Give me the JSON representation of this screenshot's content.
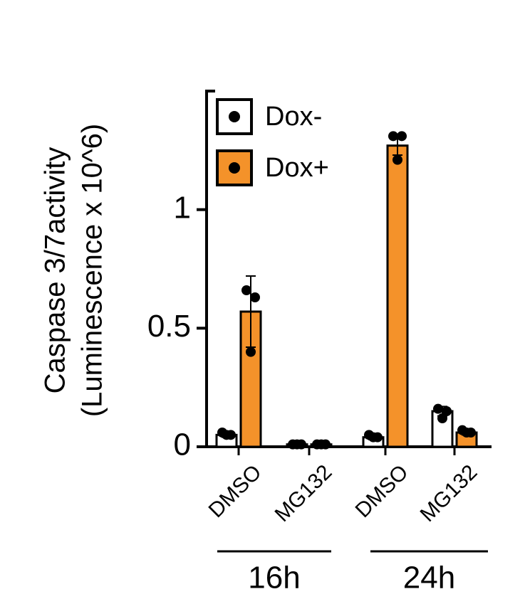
{
  "chart_data": {
    "type": "bar",
    "y_label": [
      "Caspase 3/7activity",
      "(Luminescence x 10^6)"
    ],
    "categories": [
      "DMSO",
      "MG132",
      "DMSO",
      "MG132"
    ],
    "groups": [
      "16h",
      "24h"
    ],
    "series": [
      {
        "name": "Dox-",
        "color": "#ffffff",
        "values": [
          0.05,
          0.01,
          0.04,
          0.15
        ],
        "errors": [
          0.01,
          0.005,
          0.01,
          0.02
        ],
        "points": [
          [
            0.06,
            0.05,
            0.05
          ],
          [
            0.01,
            0.01,
            0.01
          ],
          [
            0.05,
            0.04,
            0.04
          ],
          [
            0.16,
            0.15,
            0.12
          ]
        ]
      },
      {
        "name": "Dox+",
        "color": "#f4922a",
        "values": [
          0.57,
          0.01,
          1.27,
          0.06
        ],
        "errors": [
          0.15,
          0.005,
          0.04,
          0.01
        ],
        "points": [
          [
            0.66,
            0.63,
            0.4
          ],
          [
            0.01,
            0.01,
            0.01
          ],
          [
            1.31,
            1.31,
            1.21
          ],
          [
            0.07,
            0.06,
            0.06
          ]
        ]
      }
    ],
    "ylim": [
      0,
      1.5
    ],
    "yticks": [
      0,
      0.5,
      1
    ]
  }
}
